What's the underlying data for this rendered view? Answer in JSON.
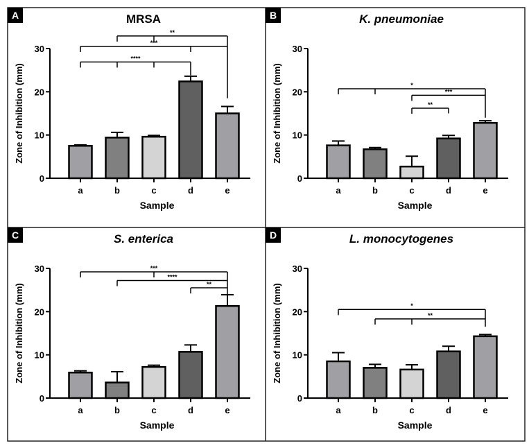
{
  "chart_data": [
    {
      "type": "bar",
      "panel_label": "A",
      "title": "MRSA",
      "title_italic": false,
      "xlabel": "Sample",
      "ylabel": "Zone of Inhibition (mm)",
      "ylim": [
        0,
        30
      ],
      "yticks": [
        "0",
        "10",
        "20",
        "30"
      ],
      "categories": [
        "a",
        "b",
        "c",
        "d",
        "e"
      ],
      "values": [
        7.5,
        9.4,
        9.6,
        22.4,
        15.0
      ],
      "errors": [
        0.2,
        1.2,
        0.3,
        1.2,
        1.6
      ],
      "colors": [
        "#a0a0a4",
        "#808080",
        "#d4d4d4",
        "#606060",
        "#a0a0a4"
      ],
      "significance": [
        {
          "label": "****",
          "from": [
            0,
            1,
            2
          ],
          "to": 3,
          "y": 26.9,
          "to_bottom": 23.8
        },
        {
          "label": "***",
          "from": [
            0,
            3
          ],
          "to": 4,
          "y": 30.5,
          "to_bottom": 18.5
        },
        {
          "label": "**",
          "from": [
            1,
            2
          ],
          "to": 4,
          "y": 32.9,
          "to_bottom": 30.5
        }
      ]
    },
    {
      "type": "bar",
      "panel_label": "B",
      "title": "K. pneumoniae",
      "title_italic": true,
      "xlabel": "Sample",
      "ylabel": "Zone of Inhibition (mm)",
      "ylim": [
        0,
        30
      ],
      "yticks": [
        "0",
        "10",
        "20",
        "30"
      ],
      "categories": [
        "a",
        "b",
        "c",
        "d",
        "e"
      ],
      "values": [
        7.6,
        6.7,
        2.7,
        9.2,
        12.8
      ],
      "errors": [
        1.0,
        0.4,
        2.4,
        0.7,
        0.5
      ],
      "colors": [
        "#a0a0a4",
        "#808080",
        "#d4d4d4",
        "#606060",
        "#a0a0a4"
      ],
      "significance": [
        {
          "label": "*",
          "from": [
            0,
            1
          ],
          "to": 4,
          "y": 20.7,
          "to_bottom": 14.0
        },
        {
          "label": "***",
          "from": [
            2
          ],
          "to": 4,
          "y": 19.2,
          "to_bottom": 19.2
        },
        {
          "label": "**",
          "from": [
            2
          ],
          "to": 3,
          "y": 16.2,
          "to_bottom": 15.0
        }
      ]
    },
    {
      "type": "bar",
      "panel_label": "C",
      "title": "S. enterica",
      "title_italic": true,
      "xlabel": "Sample",
      "ylabel": "Zone of Inhibition (mm)",
      "ylim": [
        0,
        30
      ],
      "yticks": [
        "0",
        "10",
        "20",
        "30"
      ],
      "categories": [
        "a",
        "b",
        "c",
        "d",
        "e"
      ],
      "values": [
        5.9,
        3.6,
        7.2,
        10.7,
        21.3
      ],
      "errors": [
        0.4,
        2.5,
        0.4,
        1.6,
        2.6
      ],
      "colors": [
        "#a0a0a4",
        "#808080",
        "#d4d4d4",
        "#606060",
        "#a0a0a4"
      ],
      "significance": [
        {
          "label": "***",
          "from": [
            0,
            2
          ],
          "to": 4,
          "y": 29.2,
          "to_bottom": 24.0
        },
        {
          "label": "****",
          "from": [
            1
          ],
          "to": 4,
          "y": 27.2,
          "to_bottom": 27.2
        },
        {
          "label": "**",
          "from": [
            3
          ],
          "to": 4,
          "y": 25.5,
          "to_bottom": 25.5
        }
      ]
    },
    {
      "type": "bar",
      "panel_label": "D",
      "title": "L. monocytogenes",
      "title_italic": true,
      "xlabel": "Sample",
      "ylabel": "Zone of Inhibition (mm)",
      "ylim": [
        0,
        30
      ],
      "yticks": [
        "0",
        "10",
        "20",
        "30"
      ],
      "categories": [
        "a",
        "b",
        "c",
        "d",
        "e"
      ],
      "values": [
        8.5,
        7.0,
        6.6,
        10.8,
        14.3
      ],
      "errors": [
        2.0,
        0.8,
        1.1,
        1.2,
        0.4
      ],
      "colors": [
        "#a0a0a4",
        "#808080",
        "#d4d4d4",
        "#606060",
        "#a0a0a4"
      ],
      "significance": [
        {
          "label": "*",
          "from": [
            0
          ],
          "to": 4,
          "y": 20.5,
          "to_bottom": 16.5
        },
        {
          "label": "**",
          "from": [
            1,
            2
          ],
          "to": 4,
          "y": 18.3,
          "to_bottom": 18.3
        }
      ]
    }
  ]
}
